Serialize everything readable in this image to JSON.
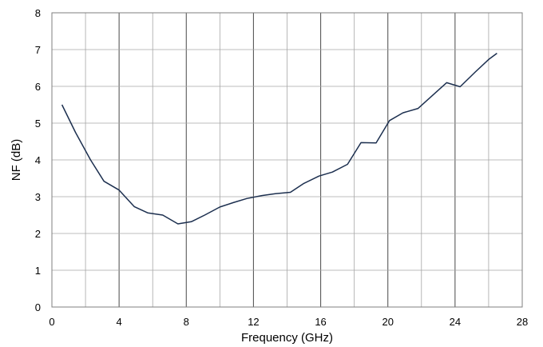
{
  "chart_data": {
    "type": "line",
    "title": "",
    "xlabel": "Frequency (GHz)",
    "ylabel": "NF (dB)",
    "xlim": [
      0,
      28
    ],
    "ylim": [
      0,
      8
    ],
    "xticks": [
      0,
      4,
      8,
      12,
      16,
      20,
      24,
      28
    ],
    "yticks": [
      0,
      1,
      2,
      3,
      4,
      5,
      6,
      7,
      8
    ],
    "xticks_minor_step": 2,
    "grid": true,
    "legend": "none",
    "series": [
      {
        "color": "#1c2f4f",
        "x": [
          0.6,
          1.4,
          2.3,
          3.1,
          4.0,
          4.9,
          5.7,
          6.6,
          7.5,
          8.3,
          9.1,
          10.0,
          10.8,
          11.6,
          12.5,
          13.3,
          14.2,
          15.0,
          15.9,
          16.7,
          17.6,
          18.4,
          19.3,
          20.1,
          20.9,
          21.8,
          22.6,
          23.5,
          24.3,
          25.2,
          26.0,
          26.5
        ],
        "y": [
          5.5,
          4.75,
          4.0,
          3.42,
          3.18,
          2.73,
          2.56,
          2.5,
          2.26,
          2.32,
          2.5,
          2.72,
          2.84,
          2.95,
          3.03,
          3.08,
          3.12,
          3.36,
          3.56,
          3.67,
          3.88,
          4.47,
          4.46,
          5.07,
          5.28,
          5.4,
          5.73,
          6.1,
          5.99,
          6.39,
          6.73,
          6.9
        ]
      }
    ]
  }
}
